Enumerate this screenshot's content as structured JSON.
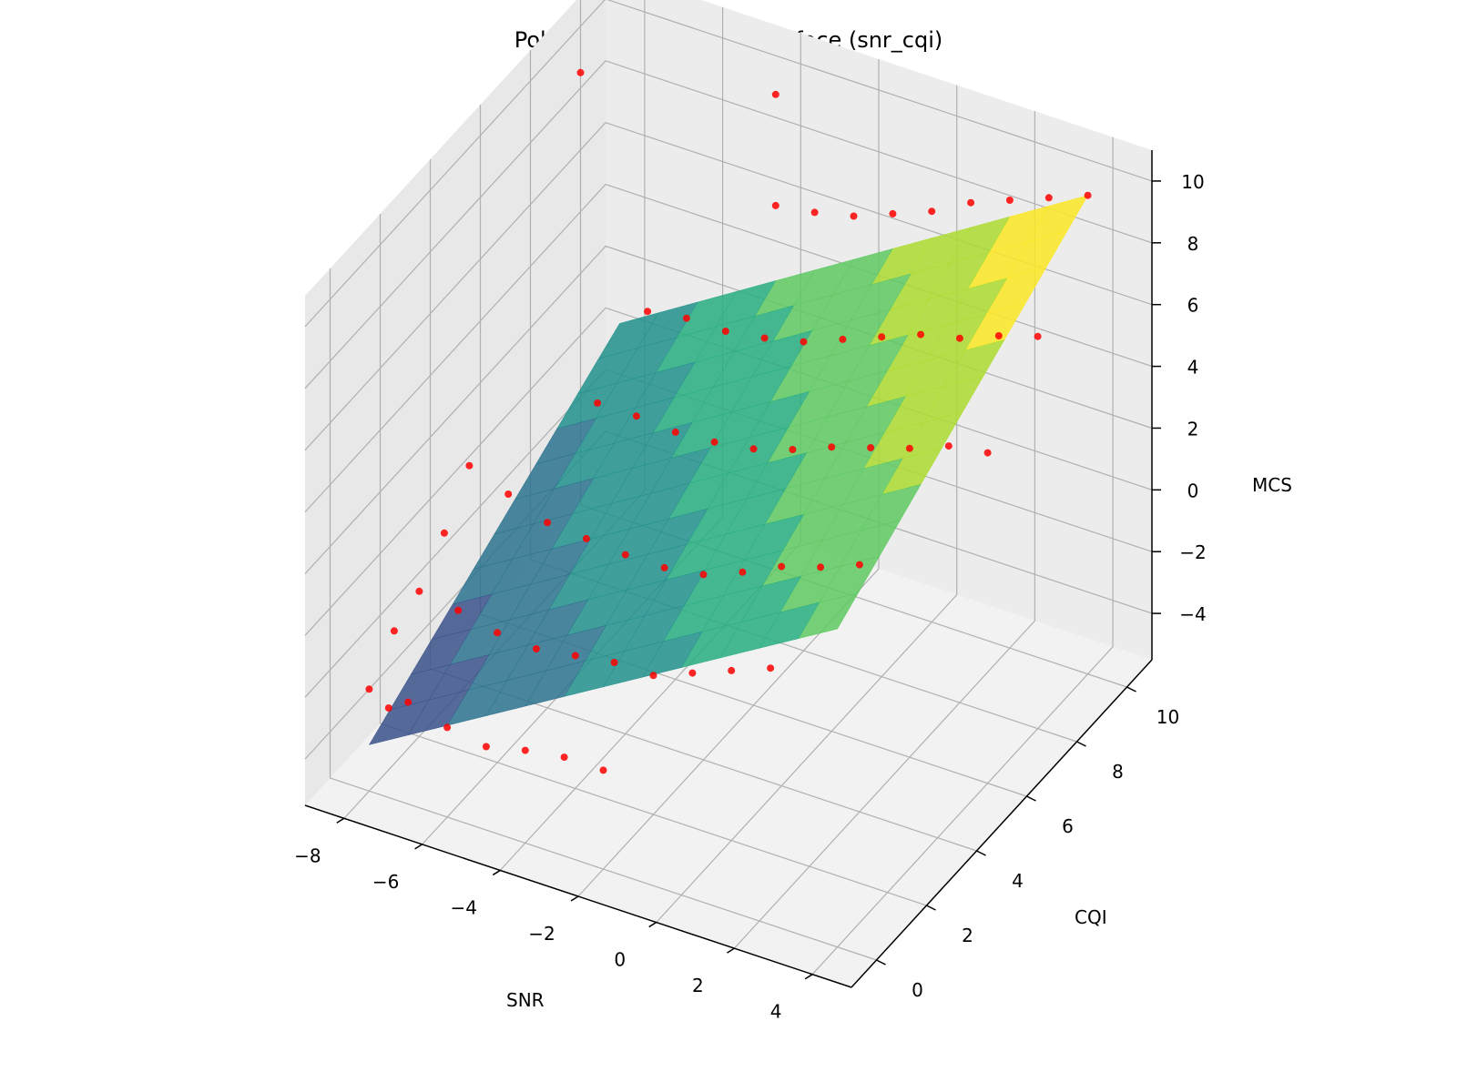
{
  "chart_data": {
    "type": "surface3d",
    "title": "Polynomial regression surface (snr_cqi)",
    "xlabel": "SNR",
    "ylabel": "CQI",
    "zlabel": "MCS",
    "xlim": [
      -9,
      5
    ],
    "ylim": [
      -1,
      11
    ],
    "zlim": [
      -5.5,
      11
    ],
    "x_ticks": [
      "−8",
      "−6",
      "−4",
      "−2",
      "0",
      "2",
      "4"
    ],
    "x_tick_values": [
      -8,
      -6,
      -4,
      -2,
      0,
      2,
      4
    ],
    "y_ticks": [
      "0",
      "2",
      "4",
      "6",
      "8",
      "10"
    ],
    "y_tick_values": [
      0,
      2,
      4,
      6,
      8,
      10
    ],
    "z_ticks": [
      "−4",
      "−2",
      "0",
      "2",
      "4",
      "6",
      "8",
      "10"
    ],
    "z_tick_values": [
      -4,
      -2,
      0,
      2,
      4,
      6,
      8,
      10
    ],
    "surface": {
      "description_range": "SNR -8..4, CQI 0..10",
      "colormap": "viridis",
      "z_corners": {
        "snr_min_cqi_min": -4.0,
        "snr_min_cqi_max": 0.8,
        "snr_max_cqi_min": 4.8,
        "snr_max_cqi_max": 10.0
      }
    },
    "scatter": {
      "color": "#ff0000",
      "series_note": "observed points",
      "points": [
        [
          -8,
          0,
          -2.2
        ],
        [
          -8,
          1,
          -1.2
        ],
        [
          -8,
          2,
          -0.8
        ],
        [
          -8,
          3,
          0.2
        ],
        [
          -8,
          4,
          1.5
        ],
        [
          -7.5,
          0,
          -2.6
        ],
        [
          -7,
          0,
          -2.2
        ],
        [
          -7,
          2,
          -1.0
        ],
        [
          -7,
          4,
          1.0
        ],
        [
          -6,
          0,
          -2.6
        ],
        [
          -6,
          2,
          -1.3
        ],
        [
          -6,
          4,
          0.5
        ],
        [
          -6,
          6,
          2.6
        ],
        [
          -6,
          8,
          3.8
        ],
        [
          -5,
          0,
          -2.8
        ],
        [
          -5,
          2,
          -1.4
        ],
        [
          -5,
          4,
          0.4
        ],
        [
          -5,
          6,
          2.6
        ],
        [
          -5,
          8,
          4.0
        ],
        [
          -4,
          0,
          -2.5
        ],
        [
          -4,
          2,
          -1.2
        ],
        [
          -4,
          4,
          0.3
        ],
        [
          -4,
          6,
          2.5
        ],
        [
          -4,
          8,
          4.0
        ],
        [
          -4,
          10,
          6.3
        ],
        [
          -3,
          0,
          -2.3
        ],
        [
          -3,
          2,
          -1.0
        ],
        [
          -3,
          4,
          0.3
        ],
        [
          -3,
          6,
          2.6
        ],
        [
          -3,
          8,
          4.2
        ],
        [
          -3,
          10,
          6.5
        ],
        [
          -2,
          0,
          -2.3
        ],
        [
          -2,
          2,
          -1.0
        ],
        [
          -2,
          4,
          0.5
        ],
        [
          -2,
          6,
          2.8
        ],
        [
          -2,
          8,
          4.5
        ],
        [
          -2,
          10,
          6.8
        ],
        [
          -1,
          2,
          -0.5
        ],
        [
          -1,
          4,
          1.0
        ],
        [
          -1,
          6,
          3.2
        ],
        [
          -1,
          8,
          5.0
        ],
        [
          -1,
          10,
          7.3
        ],
        [
          0,
          2,
          0.0
        ],
        [
          0,
          4,
          1.6
        ],
        [
          0,
          6,
          3.7
        ],
        [
          0,
          8,
          5.5
        ],
        [
          0,
          10,
          7.8
        ],
        [
          1,
          2,
          0.5
        ],
        [
          1,
          4,
          2.0
        ],
        [
          1,
          6,
          4.1
        ],
        [
          1,
          8,
          6.0
        ],
        [
          1,
          10,
          8.5
        ],
        [
          2,
          4,
          2.5
        ],
        [
          2,
          6,
          4.5
        ],
        [
          2,
          8,
          6.3
        ],
        [
          2,
          10,
          9.0
        ],
        [
          3,
          6,
          5.0
        ],
        [
          3,
          8,
          6.8
        ],
        [
          3,
          10,
          9.5
        ],
        [
          4,
          6,
          5.2
        ],
        [
          4,
          8,
          7.2
        ],
        [
          4,
          10,
          10.0
        ],
        [
          -9,
          10,
          8.5
        ],
        [
          -4,
          10,
          9.9
        ]
      ]
    }
  }
}
